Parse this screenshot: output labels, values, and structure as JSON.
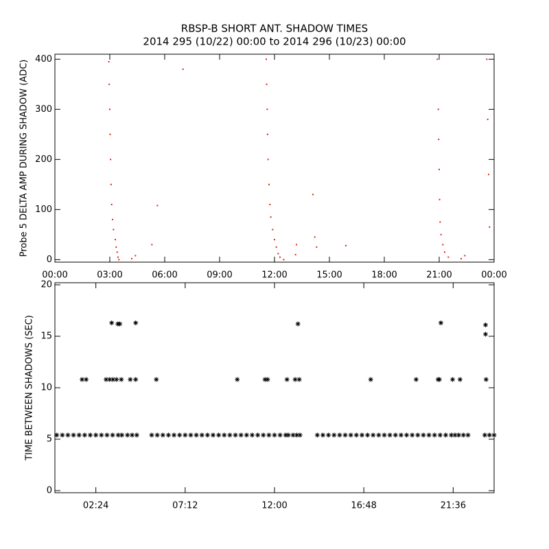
{
  "chart_data": [
    {
      "type": "scatter",
      "title": "RBSP-B SHORT ANT. SHADOW TIMES",
      "subtitle": "2014 295 (10/22) 00:00 to 2014 296 (10/23) 00:00",
      "y_label": "Probe 5 DELTA AMP DURING SHADOW (ADC)",
      "color": "#e02010",
      "marker": "dot",
      "xlim": [
        0,
        24
      ],
      "ylim": [
        -5,
        410
      ],
      "xticks": [
        {
          "value": 0,
          "label": "00:00"
        },
        {
          "value": 3,
          "label": "03:00"
        },
        {
          "value": 6,
          "label": "06:00"
        },
        {
          "value": 9,
          "label": "09:00"
        },
        {
          "value": 12,
          "label": "12:00"
        },
        {
          "value": 15,
          "label": "15:00"
        },
        {
          "value": 18,
          "label": "18:00"
        },
        {
          "value": 21,
          "label": "21:00"
        },
        {
          "value": 24,
          "label": "00:00"
        }
      ],
      "yticks": [
        0,
        100,
        200,
        300,
        400
      ],
      "x": [
        2.95,
        2.97,
        3.0,
        3.02,
        3.04,
        3.07,
        3.1,
        3.15,
        3.2,
        3.3,
        3.35,
        3.4,
        3.45,
        3.5,
        4.2,
        4.4,
        5.3,
        5.6,
        7.0,
        11.55,
        11.57,
        11.6,
        11.62,
        11.65,
        11.7,
        11.75,
        11.8,
        11.9,
        12.0,
        12.1,
        12.2,
        12.3,
        12.5,
        13.15,
        13.2,
        14.1,
        14.2,
        14.3,
        15.9,
        20.9,
        20.95,
        20.97,
        21.0,
        21.02,
        21.05,
        21.1,
        21.2,
        21.3,
        21.5,
        22.2,
        22.4,
        23.6,
        23.65,
        23.7,
        23.75
      ],
      "y": [
        395,
        350,
        300,
        250,
        200,
        150,
        110,
        80,
        60,
        40,
        25,
        15,
        5,
        0,
        2,
        8,
        30,
        108,
        380,
        400,
        350,
        300,
        250,
        200,
        150,
        110,
        85,
        60,
        40,
        25,
        12,
        5,
        0,
        10,
        30,
        130,
        45,
        25,
        28,
        400,
        300,
        240,
        180,
        120,
        75,
        50,
        30,
        15,
        5,
        2,
        8,
        400,
        280,
        170,
        65
      ]
    },
    {
      "type": "scatter",
      "y_label": "TIME BETWEEN SHADOWS (SEC)",
      "color": "#000000",
      "marker": "asterisk",
      "xlim": [
        0.2,
        23.8
      ],
      "ylim": [
        -0.2,
        20.2
      ],
      "xticks": [
        {
          "value": 2.4,
          "label": "02:24"
        },
        {
          "value": 7.2,
          "label": "07:12"
        },
        {
          "value": 12,
          "label": "12:00"
        },
        {
          "value": 16.8,
          "label": "16:48"
        },
        {
          "value": 21.6,
          "label": "21:36"
        }
      ],
      "yticks": [
        0,
        5,
        10,
        15,
        20
      ],
      "x": [
        0.3,
        0.6,
        0.9,
        1.2,
        1.5,
        1.8,
        2.1,
        2.4,
        2.7,
        3.0,
        3.3,
        3.6,
        3.8,
        4.1,
        4.35,
        4.6,
        5.4,
        5.7,
        6.0,
        6.3,
        6.6,
        6.9,
        7.2,
        7.5,
        7.8,
        8.1,
        8.4,
        8.7,
        9.0,
        9.3,
        9.6,
        9.9,
        10.2,
        10.5,
        10.8,
        11.1,
        11.4,
        11.7,
        12.0,
        12.3,
        12.6,
        12.74,
        13.0,
        13.2,
        13.37,
        14.3,
        14.6,
        14.9,
        15.2,
        15.5,
        15.8,
        16.1,
        16.4,
        16.7,
        17.0,
        17.3,
        17.6,
        17.9,
        18.2,
        18.5,
        18.8,
        19.1,
        19.4,
        19.7,
        20.0,
        20.3,
        20.6,
        20.9,
        21.2,
        21.5,
        21.7,
        21.9,
        22.15,
        22.4,
        23.3,
        23.55,
        23.8,
        1.66,
        1.88,
        2.95,
        3.14,
        3.32,
        3.51,
        3.77,
        4.25,
        4.54,
        5.65,
        10.0,
        11.49,
        11.63,
        12.67,
        13.11,
        13.33,
        17.17,
        19.61,
        20.79,
        20.86,
        21.57,
        21.97,
        23.37,
        3.25,
        3.58,
        3.69,
        4.54,
        13.26,
        20.94,
        23.34,
        23.34
      ],
      "y": [
        5.4,
        5.4,
        5.4,
        5.4,
        5.4,
        5.4,
        5.4,
        5.4,
        5.4,
        5.4,
        5.4,
        5.4,
        5.4,
        5.4,
        5.4,
        5.4,
        5.4,
        5.4,
        5.4,
        5.4,
        5.4,
        5.4,
        5.4,
        5.4,
        5.4,
        5.4,
        5.4,
        5.4,
        5.4,
        5.4,
        5.4,
        5.4,
        5.4,
        5.4,
        5.4,
        5.4,
        5.4,
        5.4,
        5.4,
        5.4,
        5.4,
        5.4,
        5.4,
        5.4,
        5.4,
        5.4,
        5.4,
        5.4,
        5.4,
        5.4,
        5.4,
        5.4,
        5.4,
        5.4,
        5.4,
        5.4,
        5.4,
        5.4,
        5.4,
        5.4,
        5.4,
        5.4,
        5.4,
        5.4,
        5.4,
        5.4,
        5.4,
        5.4,
        5.4,
        5.4,
        5.4,
        5.4,
        5.4,
        5.4,
        5.4,
        5.4,
        5.4,
        10.8,
        10.8,
        10.8,
        10.8,
        10.8,
        10.8,
        10.8,
        10.8,
        10.8,
        10.8,
        10.8,
        10.8,
        10.8,
        10.8,
        10.8,
        10.8,
        10.8,
        10.8,
        10.8,
        10.8,
        10.8,
        10.8,
        10.8,
        16.3,
        16.2,
        16.2,
        16.3,
        16.2,
        16.3,
        16.1,
        15.2
      ]
    }
  ]
}
